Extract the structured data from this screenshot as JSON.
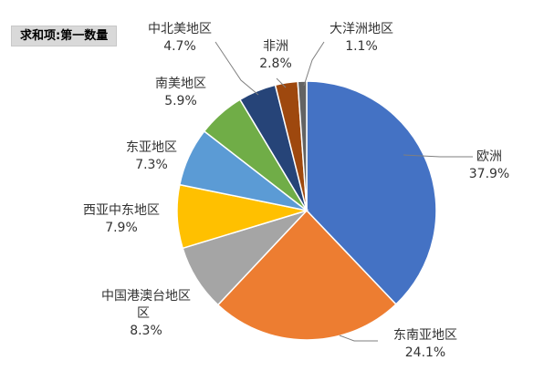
{
  "pivot_field_button": "求和项:第一数量",
  "chart_data": {
    "type": "pie",
    "categories": [
      "欧洲",
      "东南亚地区",
      "中国港澳台地区",
      "西亚中东地区",
      "东亚地区",
      "南美地区",
      "中北美地区",
      "非洲",
      "大洋洲地区"
    ],
    "values": [
      37.9,
      24.1,
      8.3,
      7.9,
      7.3,
      5.9,
      4.7,
      2.8,
      1.1
    ],
    "value_labels": [
      "37.9%",
      "24.1%",
      "8.3%",
      "7.9%",
      "7.3%",
      "5.9%",
      "4.7%",
      "2.8%",
      "1.1%"
    ],
    "colors": [
      "#4472C4",
      "#ED7D31",
      "#A5A5A5",
      "#FFC000",
      "#5B9BD5",
      "#70AD47",
      "#264478",
      "#9E480E",
      "#636363"
    ],
    "title": "",
    "legend": "none",
    "data_labels": "outside-with-leader-lines"
  }
}
